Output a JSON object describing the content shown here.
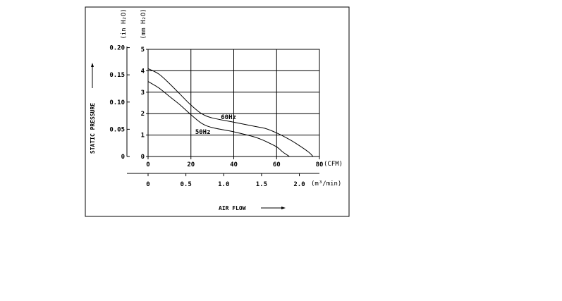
{
  "chart_data": {
    "type": "line",
    "xlabel": "AIR FLOW",
    "ylabel": "STATIC PRESSURE",
    "x_axis_primary": {
      "unit": "(CFM)",
      "ticks": [
        0,
        20,
        40,
        60,
        80
      ],
      "tick_labels": [
        "0",
        "20",
        "40",
        "60",
        "80"
      ],
      "range": [
        0,
        80
      ]
    },
    "x_axis_secondary": {
      "unit": "(m³/min)",
      "tick_labels": [
        "0",
        "0.5",
        "1.0",
        "1.5",
        "2.0"
      ],
      "tick_values": [
        0,
        0.5,
        1.0,
        1.5,
        2.0
      ]
    },
    "y_axis_primary": {
      "unit": "(mm H₂O)",
      "ticks": [
        0,
        1,
        2,
        3,
        4,
        5
      ],
      "tick_labels": [
        "0",
        "1",
        "2",
        "3",
        "4",
        "5"
      ],
      "range": [
        0,
        5
      ]
    },
    "y_axis_secondary": {
      "unit": "(in H₂O)",
      "tick_labels": [
        "0",
        "0.05",
        "0.10",
        "0.15",
        "0.20"
      ],
      "tick_values": [
        0,
        0.05,
        0.1,
        0.15,
        0.2
      ]
    },
    "grid": true,
    "series": [
      {
        "name": "60Hz",
        "x": [
          0,
          5,
          10,
          15,
          20,
          25,
          30,
          40,
          50,
          55,
          60,
          65,
          70,
          75,
          77
        ],
        "y": [
          4.1,
          3.85,
          3.4,
          2.9,
          2.4,
          2.0,
          1.8,
          1.6,
          1.4,
          1.3,
          1.1,
          0.85,
          0.55,
          0.2,
          0
        ]
      },
      {
        "name": "50Hz",
        "x": [
          0,
          5,
          10,
          15,
          20,
          25,
          30,
          40,
          50,
          55,
          60,
          63,
          66
        ],
        "y": [
          3.5,
          3.2,
          2.8,
          2.4,
          1.95,
          1.55,
          1.35,
          1.15,
          0.9,
          0.7,
          0.45,
          0.2,
          0
        ]
      }
    ],
    "colors": {
      "line": "#000000",
      "grid": "#000000",
      "background": "#ffffff"
    }
  }
}
